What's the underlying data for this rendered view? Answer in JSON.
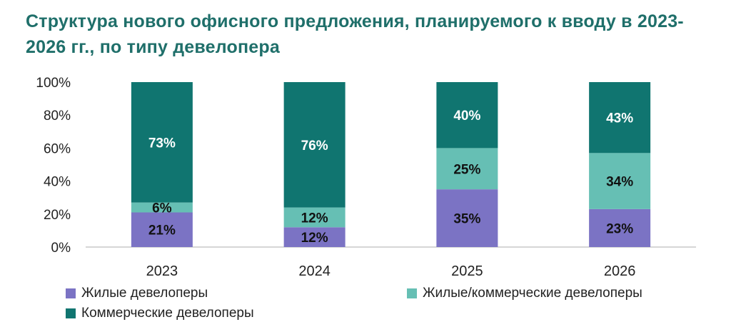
{
  "title": "Структура нового офисного предложения, планируемого к вводу в 2023-2026 гг., по типу девелопера",
  "colors": {
    "residential": "#7b73c4",
    "mixed": "#66bfb4",
    "commercial": "#107570"
  },
  "chart_data": {
    "type": "bar",
    "stacked": true,
    "categories": [
      "2023",
      "2024",
      "2025",
      "2026"
    ],
    "ylim": [
      0,
      100
    ],
    "yticks": [
      "0%",
      "20%",
      "40%",
      "60%",
      "80%",
      "100%"
    ],
    "series": [
      {
        "name": "Жилые девелоперы",
        "values": [
          21,
          12,
          35,
          23
        ],
        "labels": [
          "21%",
          "12%",
          "35%",
          "23%"
        ]
      },
      {
        "name": "Жилые/коммерческие девелоперы",
        "values": [
          6,
          12,
          25,
          34
        ],
        "labels": [
          "6%",
          "12%",
          "25%",
          "34%"
        ]
      },
      {
        "name": "Коммерческие девелоперы",
        "values": [
          73,
          76,
          40,
          43
        ],
        "labels": [
          "73%",
          "76%",
          "40%",
          "43%"
        ]
      }
    ],
    "legend_position": "bottom",
    "grid": false
  }
}
